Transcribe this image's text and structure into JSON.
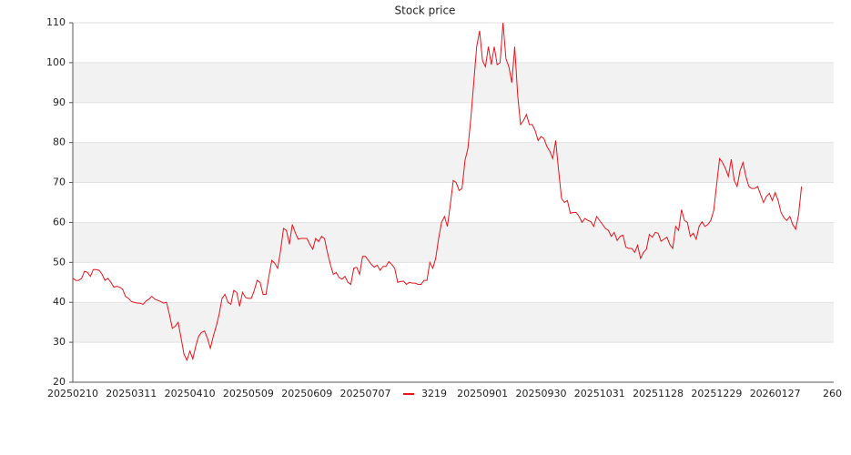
{
  "chart_data": {
    "type": "line",
    "title": "Stock price",
    "categories": [
      "20250210",
      null,
      null,
      null,
      null,
      null,
      null,
      null,
      null,
      null,
      null,
      null,
      null,
      null,
      null,
      null,
      null,
      null,
      null,
      null,
      "20250311",
      null,
      null,
      null,
      null,
      null,
      null,
      null,
      null,
      null,
      null,
      null,
      null,
      null,
      null,
      null,
      null,
      null,
      null,
      null,
      "20250410",
      null,
      null,
      null,
      null,
      null,
      null,
      null,
      null,
      null,
      null,
      null,
      null,
      null,
      null,
      null,
      null,
      null,
      null,
      null,
      "20250509",
      null,
      null,
      null,
      null,
      null,
      null,
      null,
      null,
      null,
      null,
      null,
      null,
      null,
      null,
      null,
      null,
      null,
      null,
      null,
      "20250609",
      null,
      null,
      null,
      null,
      null,
      null,
      null,
      null,
      null,
      null,
      null,
      null,
      null,
      null,
      null,
      null,
      null,
      null,
      null,
      "20250707",
      null,
      null,
      null,
      null,
      null,
      null,
      null,
      null,
      null,
      null,
      null,
      null,
      null,
      null,
      null,
      null,
      null,
      null,
      null,
      null,
      null,
      null,
      null,
      null,
      null,
      null,
      null,
      null,
      null,
      null,
      null,
      null,
      null,
      null,
      null,
      null,
      null,
      null,
      null,
      "20250901",
      null,
      null,
      null,
      null,
      null,
      null,
      null,
      null,
      null,
      null,
      null,
      null,
      null,
      null,
      null,
      null,
      null,
      null,
      null,
      "20250930",
      null,
      null,
      null,
      null,
      null,
      null,
      null,
      null,
      null,
      null,
      null,
      null,
      null,
      null,
      null,
      null,
      null,
      null,
      null,
      "20251031",
      null,
      null,
      null,
      null,
      null,
      null,
      null,
      null,
      null,
      null,
      null,
      null,
      null,
      null,
      null,
      null,
      null,
      null,
      null,
      "20251128",
      null,
      null,
      null,
      null,
      null,
      null,
      null,
      null,
      null,
      null,
      null,
      null,
      null,
      null,
      null,
      null,
      null,
      null,
      null,
      "20251229",
      null,
      null,
      null,
      null,
      null,
      null,
      null,
      null,
      null,
      null,
      null,
      null,
      null,
      null,
      null,
      null,
      null,
      null,
      null,
      "20260127",
      null,
      null,
      null,
      null,
      null,
      null,
      null,
      null,
      null,
      null,
      null,
      null,
      null,
      null,
      null,
      null,
      null,
      null,
      null,
      "260"
    ],
    "series": [
      {
        "name": "3219",
        "color": "#e8141c",
        "values": [
          46,
          45.5,
          45.5,
          46,
          47.8,
          47.5,
          46.5,
          48.2,
          48.2,
          48,
          47,
          45.5,
          46,
          45,
          43.8,
          44,
          43.8,
          43.3,
          41.5,
          41,
          40.2,
          40,
          39.8,
          39.8,
          39.5,
          40.3,
          40.8,
          41.5,
          40.8,
          40.5,
          40.2,
          39.8,
          40,
          37,
          33.5,
          34,
          35,
          31,
          27,
          25.5,
          27.8,
          25.8,
          29,
          31.5,
          32.5,
          32.8,
          31,
          28.5,
          31.5,
          34,
          37,
          41,
          42,
          40,
          39.5,
          43,
          42.5,
          39,
          42.5,
          41.2,
          41,
          41,
          43,
          45.5,
          45,
          42,
          42,
          46.5,
          50.5,
          49.8,
          48.5,
          53,
          58.5,
          58,
          54.5,
          59.5,
          57.5,
          55.8,
          56,
          56,
          56,
          54.5,
          53.3,
          56,
          55.2,
          56.5,
          56,
          52.5,
          49.5,
          47,
          47.5,
          46.2,
          45.8,
          46.5,
          45,
          44.5,
          48.5,
          48.8,
          47,
          51.5,
          51.5,
          50.5,
          49.5,
          48.8,
          49.3,
          48,
          49,
          49,
          50.2,
          49.5,
          48.5,
          45,
          45.2,
          45.3,
          44.5,
          45,
          44.8,
          44.8,
          44.5,
          44.5,
          45.5,
          45.5,
          50,
          48.5,
          51,
          56,
          60,
          61.5,
          59,
          64.5,
          70.5,
          70,
          68,
          68.5,
          75.5,
          78.5,
          86,
          95,
          104,
          108,
          100.5,
          99,
          104,
          99.5,
          104,
          99.5,
          100,
          110,
          101,
          99,
          95,
          104,
          92,
          84.5,
          85.5,
          87,
          84.5,
          84.5,
          83,
          80.5,
          81.5,
          81,
          79,
          77.8,
          76,
          80.5,
          73,
          66,
          65,
          65.5,
          62.3,
          62.5,
          62.5,
          61.5,
          60,
          61,
          60.5,
          60.2,
          59,
          61.5,
          60.5,
          59.5,
          58.5,
          58,
          56.5,
          57.5,
          55.5,
          56.5,
          56.8,
          53.8,
          53.5,
          53.5,
          52.5,
          54.3,
          51,
          52.5,
          53.3,
          57,
          56.3,
          57.5,
          57.3,
          55.3,
          55.8,
          56.3,
          54.5,
          53.5,
          59,
          58,
          63.2,
          60.5,
          60,
          56.5,
          57.3,
          55.8,
          59,
          60.2,
          59,
          59.5,
          60.5,
          63,
          69.5,
          76,
          75,
          73.5,
          71.5,
          75.8,
          70.5,
          69,
          73,
          75,
          71.5,
          69,
          68.5,
          68.5,
          69,
          67,
          65,
          66.5,
          67.3,
          65.5,
          67.5,
          65.5,
          62.5,
          61.2,
          60.5,
          61.5,
          59.5,
          58.3,
          62,
          69,
          null,
          null,
          null,
          null,
          null,
          null,
          null,
          null,
          null,
          null,
          null
        ]
      }
    ],
    "ylim": [
      20,
      110
    ],
    "yticks": [
      20,
      30,
      40,
      50,
      60,
      70,
      80,
      90,
      100,
      110
    ],
    "grid": true
  }
}
